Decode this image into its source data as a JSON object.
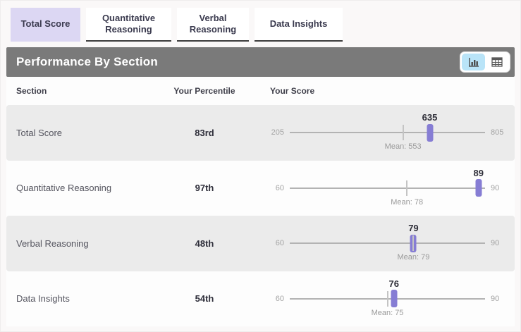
{
  "tabs": [
    {
      "label": "Total Score",
      "active": true
    },
    {
      "label": "Quantitative Reasoning",
      "active": false
    },
    {
      "label": "Verbal Reasoning",
      "active": false
    },
    {
      "label": "Data Insights",
      "active": false
    }
  ],
  "panel": {
    "title": "Performance By Section",
    "view_toggle": {
      "active_view": "chart",
      "buttons": [
        {
          "icon": "bar-chart-icon",
          "view": "chart"
        },
        {
          "icon": "table-grid-icon",
          "view": "table"
        }
      ]
    }
  },
  "table": {
    "columns": [
      "Section",
      "Your Percentile",
      "Your Score"
    ],
    "rows": [
      {
        "section": "Total Score",
        "percentile": "83rd",
        "min": 205,
        "max": 805,
        "score": 635,
        "mean": 553,
        "mean_label": "Mean: 553"
      },
      {
        "section": "Quantitative Reasoning",
        "percentile": "97th",
        "min": 60,
        "max": 90,
        "score": 89,
        "mean": 78,
        "mean_label": "Mean: 78"
      },
      {
        "section": "Verbal Reasoning",
        "percentile": "48th",
        "min": 60,
        "max": 90,
        "score": 79,
        "mean": 79,
        "mean_label": "Mean: 79"
      },
      {
        "section": "Data Insights",
        "percentile": "54th",
        "min": 60,
        "max": 90,
        "score": 76,
        "mean": 75,
        "mean_label": "Mean: 75"
      }
    ]
  },
  "colors": {
    "accent_purple": "#867dd4",
    "active_tab_bg": "#dcd7f3",
    "header_gray": "#7a7a7a",
    "row_stripe_gray": "#ebebeb",
    "toggle_active_blue": "#b9e4f8",
    "page_bg": "#faf8f8"
  }
}
